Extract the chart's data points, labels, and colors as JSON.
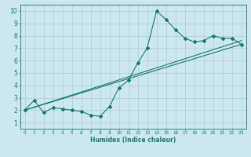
{
  "xlabel": "Humidex (Indice chaleur)",
  "bg_color": "#cce8ee",
  "grid_color": "#aacdd6",
  "line_color": "#1a7a6e",
  "xlim": [
    -0.5,
    23.5
  ],
  "ylim": [
    0.5,
    10.5
  ],
  "xticks": [
    0,
    1,
    2,
    3,
    4,
    5,
    6,
    7,
    8,
    9,
    10,
    11,
    12,
    13,
    14,
    15,
    16,
    17,
    18,
    19,
    20,
    21,
    22,
    23
  ],
  "yticks": [
    1,
    2,
    3,
    4,
    5,
    6,
    7,
    8,
    9,
    10
  ],
  "line1_x": [
    0,
    1,
    2,
    3,
    4,
    5,
    6,
    7,
    8,
    9,
    10,
    11,
    12,
    13,
    14,
    15,
    16,
    17,
    18,
    19,
    20,
    21,
    22,
    23
  ],
  "line1_y": [
    2.0,
    2.8,
    1.8,
    2.2,
    2.1,
    2.0,
    1.9,
    1.6,
    1.5,
    2.3,
    3.8,
    4.4,
    5.8,
    7.0,
    10.0,
    9.3,
    8.5,
    7.8,
    7.5,
    7.6,
    8.0,
    7.8,
    7.8,
    7.3
  ],
  "line2_x": [
    0,
    23
  ],
  "line2_y": [
    2.0,
    7.3
  ],
  "line3_x": [
    0,
    23
  ],
  "line3_y": [
    2.0,
    7.6
  ]
}
